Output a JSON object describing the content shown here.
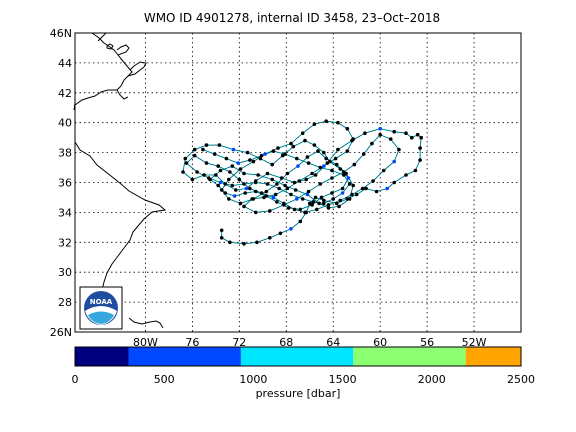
{
  "title": "WMO ID 4901278, internal ID 3458, 23–Oct–2018",
  "chart_data": {
    "type": "scatter",
    "xaxis": {
      "range_lon": [
        -86,
        -48
      ],
      "tick_lons": [
        -80,
        -76,
        -72,
        -68,
        -64,
        -60,
        -56,
        -52
      ],
      "tick_labels": [
        "80W",
        "76",
        "72",
        "68",
        "64",
        "60",
        "56",
        "52W"
      ]
    },
    "yaxis": {
      "range_lat": [
        26,
        46
      ],
      "tick_lats": [
        26,
        28,
        30,
        32,
        34,
        36,
        38,
        40,
        42,
        44,
        46
      ],
      "tick_labels": [
        "26N",
        "28",
        "30",
        "32",
        "34",
        "36",
        "38",
        "40",
        "42",
        "44",
        "46N"
      ]
    },
    "grid": true,
    "track": [
      [
        -73.5,
        32.8
      ],
      [
        -73.5,
        32.3
      ],
      [
        -72.8,
        32.0
      ],
      [
        -71.6,
        31.9
      ],
      [
        -70.5,
        32.0
      ],
      [
        -69.4,
        32.3
      ],
      [
        -68.5,
        32.6
      ],
      [
        -67.6,
        32.9
      ],
      [
        -66.8,
        33.4
      ],
      [
        -66.3,
        34.0
      ],
      [
        -66.0,
        34.6
      ],
      [
        -65.5,
        35.0
      ],
      [
        -64.8,
        34.8
      ],
      [
        -63.7,
        34.6
      ],
      [
        -62.8,
        34.9
      ],
      [
        -62.0,
        35.2
      ],
      [
        -61.2,
        35.6
      ],
      [
        -60.3,
        35.4
      ],
      [
        -59.4,
        35.6
      ],
      [
        -58.8,
        36.0
      ],
      [
        -57.8,
        36.5
      ],
      [
        -57.0,
        36.8
      ],
      [
        -56.6,
        37.5
      ],
      [
        -56.6,
        38.3
      ],
      [
        -56.5,
        39.0
      ],
      [
        -56.8,
        39.2
      ],
      [
        -57.3,
        39.0
      ],
      [
        -57.8,
        39.3
      ],
      [
        -58.8,
        39.4
      ],
      [
        -60.0,
        39.6
      ],
      [
        -61.3,
        39.3
      ],
      [
        -62.4,
        38.8
      ],
      [
        -63.6,
        38.2
      ],
      [
        -64.5,
        37.3
      ],
      [
        -65.5,
        36.5
      ],
      [
        -66.3,
        36.2
      ],
      [
        -67.3,
        36.0
      ],
      [
        -68.4,
        36.3
      ],
      [
        -69.6,
        36.6
      ],
      [
        -70.6,
        36.1
      ],
      [
        -71.4,
        35.6
      ],
      [
        -72.3,
        35.5
      ],
      [
        -73.2,
        35.9
      ],
      [
        -74.0,
        36.5
      ],
      [
        -75.0,
        36.5
      ],
      [
        -76.0,
        36.2
      ],
      [
        -76.8,
        36.7
      ],
      [
        -76.6,
        37.6
      ],
      [
        -75.8,
        38.2
      ],
      [
        -74.8,
        38.5
      ],
      [
        -73.7,
        38.5
      ],
      [
        -72.5,
        38.2
      ],
      [
        -71.3,
        38.0
      ],
      [
        -70.2,
        37.6
      ],
      [
        -69.2,
        37.2
      ],
      [
        -68.3,
        37.8
      ],
      [
        -67.4,
        38.4
      ],
      [
        -66.4,
        38.8
      ],
      [
        -65.6,
        38.5
      ],
      [
        -64.8,
        38.0
      ],
      [
        -64.3,
        37.4
      ],
      [
        -63.4,
        36.9
      ],
      [
        -62.7,
        36.3
      ],
      [
        -63.2,
        35.6
      ],
      [
        -64.1,
        35.3
      ],
      [
        -65.0,
        35.0
      ],
      [
        -65.8,
        34.5
      ],
      [
        -66.8,
        34.2
      ],
      [
        -67.8,
        34.3
      ],
      [
        -68.8,
        34.7
      ],
      [
        -69.7,
        35.1
      ],
      [
        -70.6,
        35.4
      ],
      [
        -71.5,
        35.3
      ],
      [
        -72.4,
        35.1
      ],
      [
        -73.2,
        35.3
      ],
      [
        -73.8,
        35.8
      ],
      [
        -74.5,
        36.2
      ],
      [
        -73.6,
        36.8
      ],
      [
        -72.6,
        37.1
      ],
      [
        -71.6,
        36.6
      ],
      [
        -70.4,
        36.5
      ],
      [
        -69.2,
        36.2
      ],
      [
        -68.1,
        35.8
      ],
      [
        -67.2,
        35.5
      ],
      [
        -66.2,
        35.2
      ],
      [
        -65.2,
        34.6
      ],
      [
        -64.4,
        34.3
      ],
      [
        -63.5,
        34.4
      ],
      [
        -62.6,
        34.9
      ],
      [
        -62.3,
        35.8
      ],
      [
        -62.9,
        36.6
      ],
      [
        -63.7,
        37.2
      ],
      [
        -64.6,
        37.6
      ],
      [
        -65.3,
        38.1
      ],
      [
        -66.2,
        37.7
      ],
      [
        -67.0,
        37.1
      ],
      [
        -67.9,
        36.6
      ],
      [
        -68.8,
        35.9
      ],
      [
        -69.7,
        35.4
      ],
      [
        -70.8,
        34.9
      ],
      [
        -71.9,
        34.6
      ],
      [
        -72.9,
        34.9
      ],
      [
        -73.5,
        35.5
      ],
      [
        -72.9,
        36.2
      ],
      [
        -71.9,
        36.9
      ],
      [
        -70.8,
        37.4
      ],
      [
        -69.8,
        37.9
      ],
      [
        -68.7,
        38.3
      ],
      [
        -67.6,
        38.6
      ],
      [
        -66.6,
        39.3
      ],
      [
        -65.6,
        39.9
      ],
      [
        -64.6,
        40.1
      ],
      [
        -63.6,
        40.0
      ],
      [
        -62.8,
        39.6
      ],
      [
        -62.3,
        38.9
      ],
      [
        -62.8,
        38.1
      ],
      [
        -63.8,
        37.6
      ],
      [
        -64.8,
        37.1
      ],
      [
        -65.8,
        36.6
      ],
      [
        -66.9,
        36.1
      ],
      [
        -67.9,
        35.6
      ],
      [
        -68.9,
        35.2
      ],
      [
        -69.9,
        35.0
      ],
      [
        -70.9,
        34.9
      ],
      [
        -71.6,
        34.4
      ],
      [
        -70.6,
        34.0
      ],
      [
        -69.4,
        34.1
      ],
      [
        -68.2,
        34.5
      ],
      [
        -67.1,
        34.9
      ],
      [
        -66.1,
        35.4
      ],
      [
        -65.1,
        35.9
      ],
      [
        -64.1,
        36.3
      ],
      [
        -63.1,
        36.7
      ],
      [
        -62.2,
        37.2
      ],
      [
        -61.4,
        37.9
      ],
      [
        -60.7,
        38.6
      ],
      [
        -60.0,
        39.2
      ],
      [
        -59.1,
        38.9
      ],
      [
        -58.4,
        38.2
      ],
      [
        -58.8,
        37.4
      ],
      [
        -59.7,
        36.8
      ],
      [
        -60.6,
        36.1
      ],
      [
        -61.5,
        35.6
      ],
      [
        -62.4,
        35.2
      ],
      [
        -63.4,
        34.8
      ],
      [
        -64.4,
        34.5
      ],
      [
        -65.4,
        34.2
      ],
      [
        -66.4,
        34.0
      ],
      [
        -67.3,
        34.2
      ],
      [
        -68.2,
        34.6
      ],
      [
        -69.1,
        35.0
      ],
      [
        -70.1,
        35.3
      ],
      [
        -71.1,
        35.6
      ],
      [
        -72.0,
        36.2
      ],
      [
        -72.8,
        36.7
      ],
      [
        -73.8,
        37.1
      ],
      [
        -74.8,
        37.3
      ],
      [
        -75.8,
        37.8
      ],
      [
        -76.5,
        37.3
      ],
      [
        -75.6,
        36.7
      ],
      [
        -74.6,
        36.3
      ],
      [
        -73.6,
        36.0
      ],
      [
        -72.6,
        35.8
      ],
      [
        -71.6,
        35.9
      ],
      [
        -70.6,
        36.0
      ],
      [
        -69.6,
        35.9
      ],
      [
        -68.6,
        35.6
      ],
      [
        -67.6,
        35.2
      ],
      [
        -66.6,
        34.9
      ],
      [
        -65.7,
        34.7
      ],
      [
        -64.8,
        34.6
      ],
      [
        -64.0,
        34.9
      ],
      [
        -63.2,
        35.3
      ],
      [
        -62.6,
        35.9
      ],
      [
        -63.1,
        36.5
      ],
      [
        -64.1,
        36.8
      ],
      [
        -65.1,
        37.0
      ],
      [
        -66.1,
        37.3
      ],
      [
        -67.1,
        37.6
      ],
      [
        -68.1,
        37.9
      ],
      [
        -69.1,
        38.1
      ],
      [
        -70.1,
        37.8
      ],
      [
        -71.1,
        37.5
      ],
      [
        -72.1,
        37.3
      ],
      [
        -73.1,
        37.6
      ],
      [
        -74.1,
        37.9
      ],
      [
        -75.1,
        38.2
      ]
    ]
  },
  "colorbar": {
    "ticks": [
      "0",
      "500",
      "1000",
      "1500",
      "2000",
      "2500"
    ],
    "label": "pressure [dbar]",
    "colors": [
      "#00007f",
      "#0048ff",
      "#00e5ff",
      "#8cff73",
      "#ffa400"
    ],
    "bounds": [
      0,
      300,
      930,
      1560,
      2190,
      2500
    ]
  },
  "colors": {
    "track_line": "#00e5ff",
    "marker": "#000000",
    "deep_marker": "#0048ff"
  },
  "logo": {
    "name": "noaa-logo",
    "text": "NOAA"
  }
}
